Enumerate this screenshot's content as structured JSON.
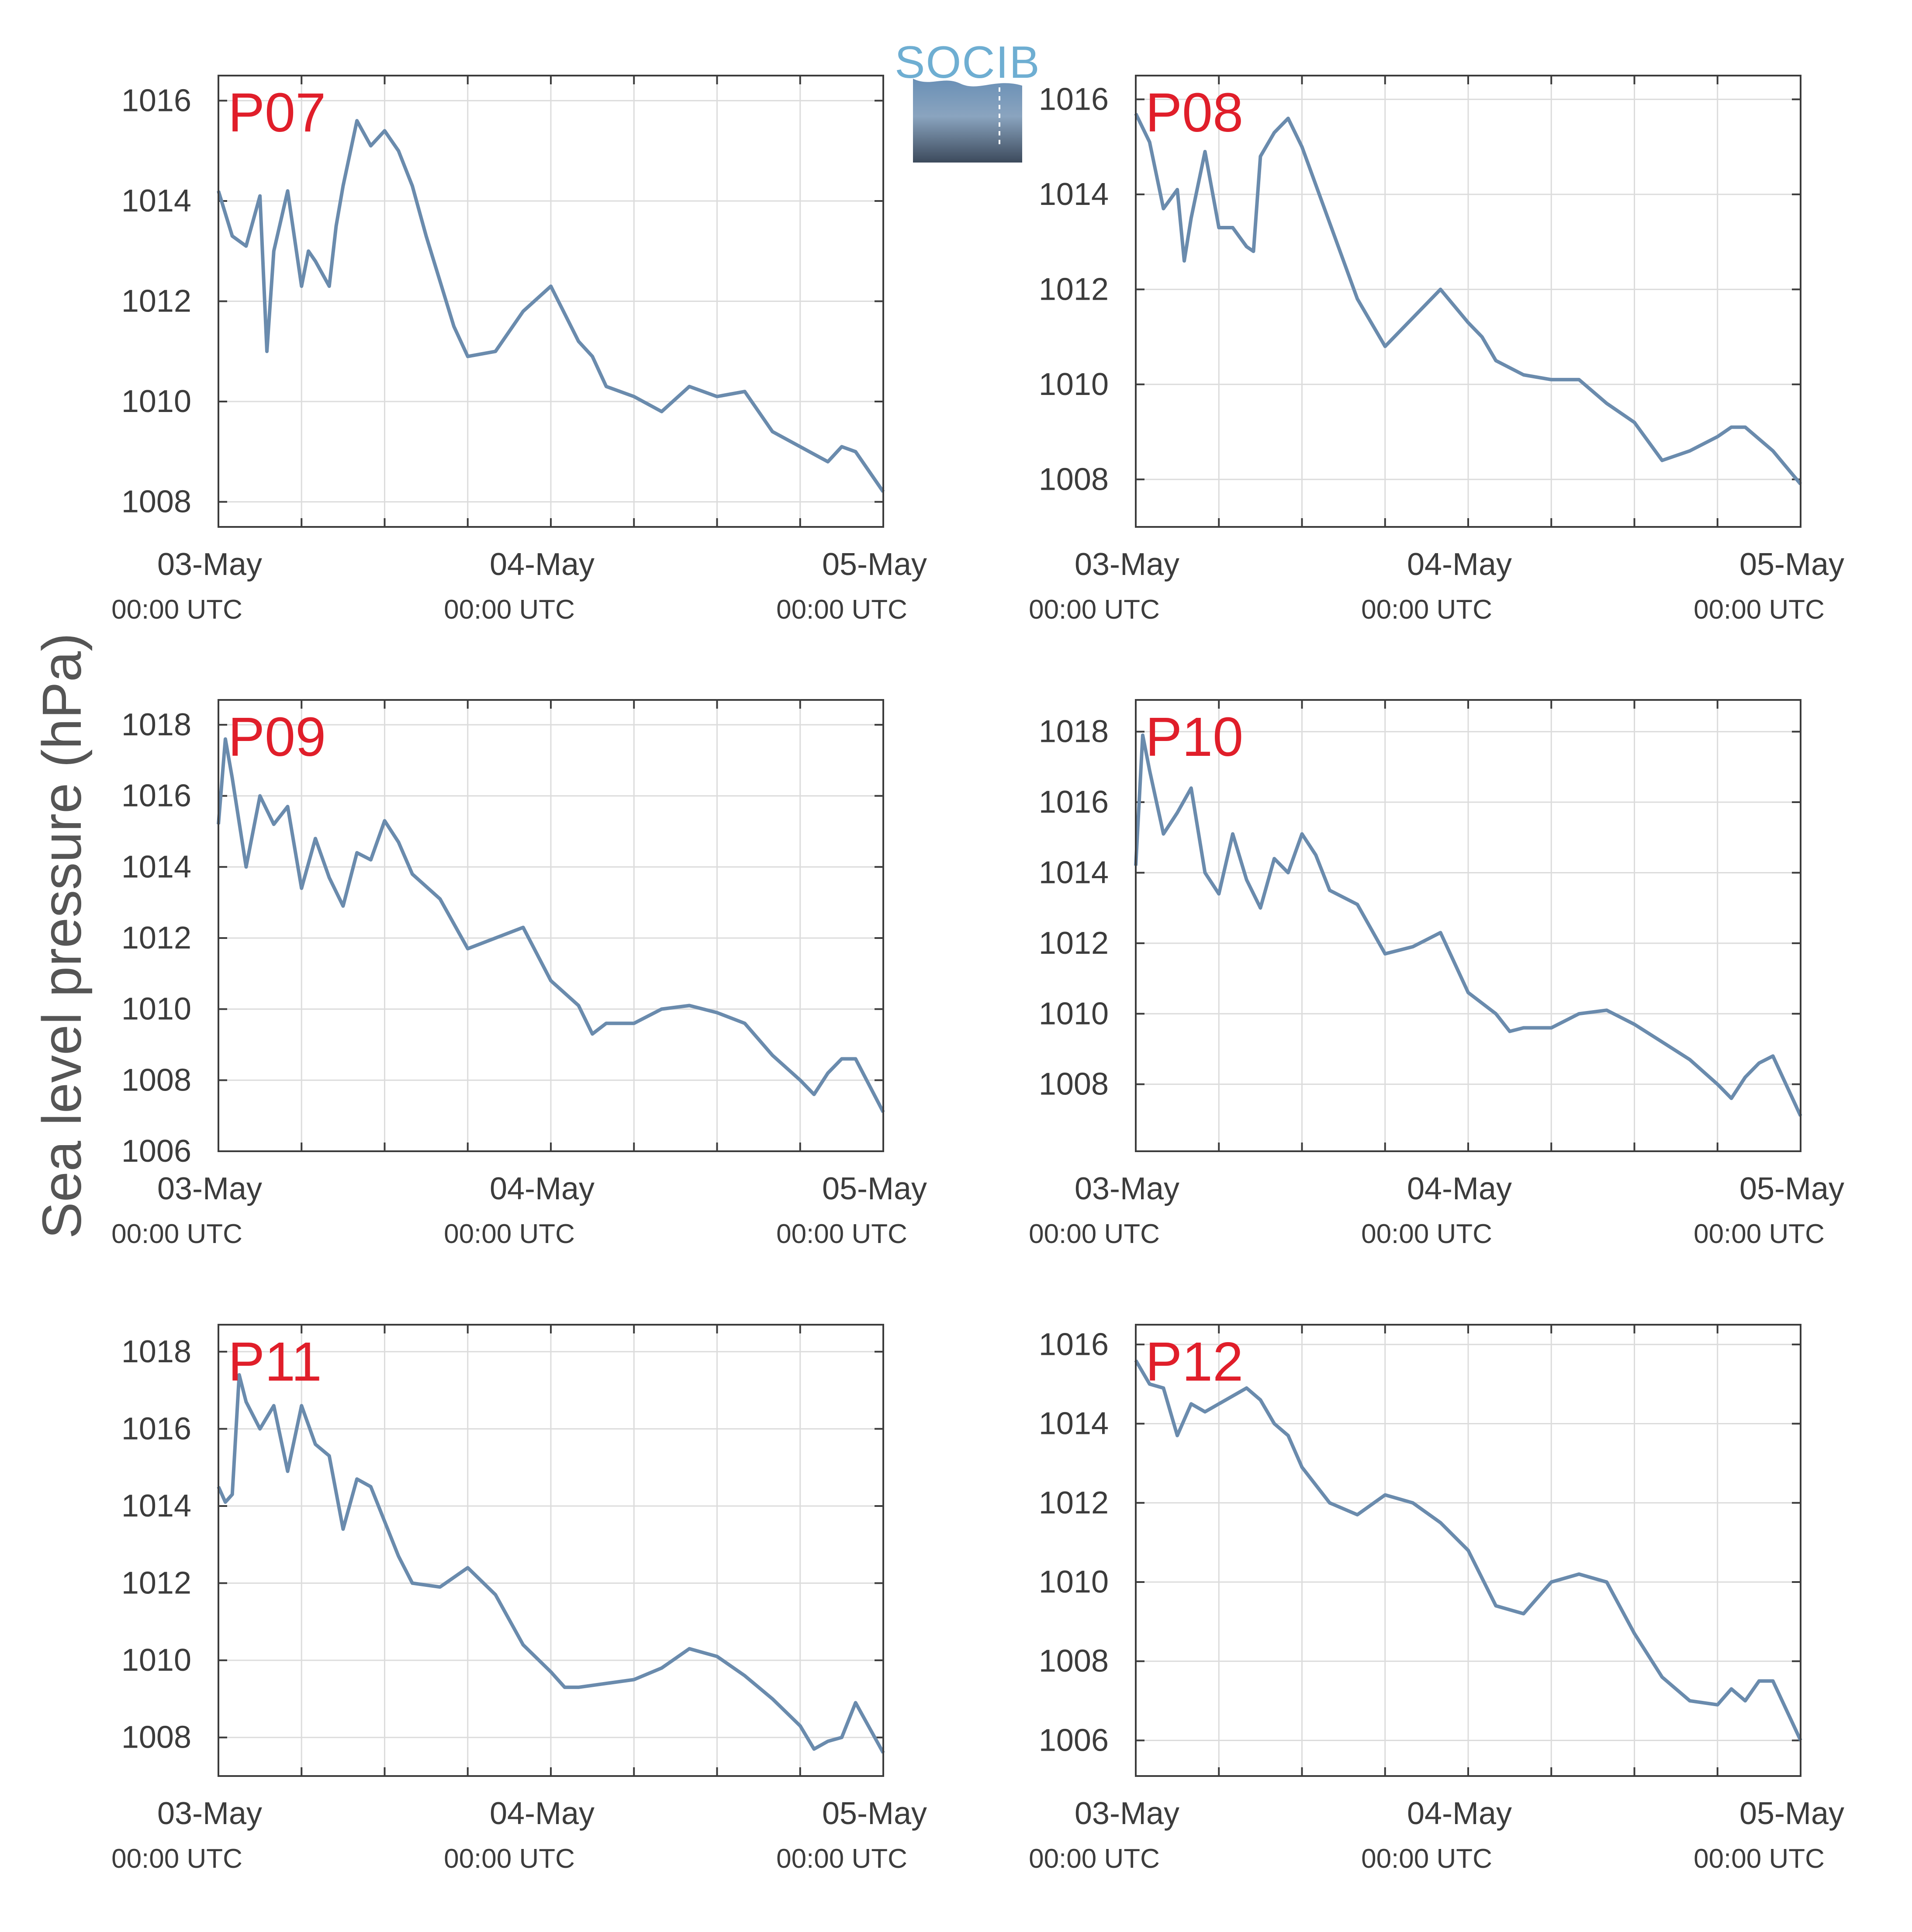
{
  "logo": {
    "text": "SOCIB"
  },
  "ylabel": "Sea level pressure (hPa)",
  "colors": {
    "line": "#6a8bad",
    "grid": "#dcdcdc",
    "axis": "#3c3c3c",
    "panel_label": "#e01e2a"
  },
  "x_tick_labels": [
    {
      "date": "03-May",
      "time": "00:00 UTC"
    },
    {
      "date": "04-May",
      "time": "00:00 UTC"
    },
    {
      "date": "05-May",
      "time": "00:00 UTC"
    }
  ],
  "chart_data": [
    {
      "type": "line",
      "panel_label": "P07",
      "ylim": [
        1007.5,
        1016.5
      ],
      "yticks": [
        1008,
        1010,
        1012,
        1014,
        1016
      ],
      "grid": true,
      "x": [
        "05-03 00:00",
        "05-03 01:00",
        "05-03 02:00",
        "05-03 03:00",
        "05-03 03:30",
        "05-03 04:00",
        "05-03 05:00",
        "05-03 06:00",
        "05-03 06:30",
        "05-03 07:00",
        "05-03 08:00",
        "05-03 08:30",
        "05-03 09:00",
        "05-03 10:00",
        "05-03 11:00",
        "05-03 12:00",
        "05-03 13:00",
        "05-03 14:00",
        "05-03 15:00",
        "05-03 16:00",
        "05-03 17:00",
        "05-03 18:00",
        "05-03 20:00",
        "05-03 22:00",
        "05-04 00:00",
        "05-04 02:00",
        "05-04 03:00",
        "05-04 04:00",
        "05-04 06:00",
        "05-04 08:00",
        "05-04 10:00",
        "05-04 12:00",
        "05-04 14:00",
        "05-04 16:00",
        "05-04 18:00",
        "05-04 20:00",
        "05-04 21:00",
        "05-04 22:00",
        "05-05 00:00"
      ],
      "y": [
        1014.2,
        1013.3,
        1013.1,
        1014.1,
        1011.0,
        1013.0,
        1014.2,
        1012.3,
        1013.0,
        1012.8,
        1012.3,
        1013.5,
        1014.3,
        1015.6,
        1015.1,
        1015.4,
        1015.0,
        1014.3,
        1013.3,
        1012.4,
        1011.5,
        1010.9,
        1011.0,
        1011.8,
        1012.3,
        1011.2,
        1010.9,
        1010.3,
        1010.1,
        1009.8,
        1010.3,
        1010.1,
        1010.2,
        1009.4,
        1009.1,
        1008.8,
        1009.1,
        1009.0,
        1008.2
      ]
    },
    {
      "type": "line",
      "panel_label": "P08",
      "ylim": [
        1007,
        1016.5
      ],
      "yticks": [
        1008,
        1010,
        1012,
        1014,
        1016
      ],
      "grid": true,
      "x": [
        "05-03 00:00",
        "05-03 01:00",
        "05-03 02:00",
        "05-03 03:00",
        "05-03 03:30",
        "05-03 04:00",
        "05-03 05:00",
        "05-03 06:00",
        "05-03 07:00",
        "05-03 08:00",
        "05-03 08:30",
        "05-03 09:00",
        "05-03 10:00",
        "05-03 11:00",
        "05-03 12:00",
        "05-03 13:00",
        "05-03 14:00",
        "05-03 16:00",
        "05-03 18:00",
        "05-03 20:00",
        "05-03 22:00",
        "05-04 00:00",
        "05-04 01:00",
        "05-04 02:00",
        "05-04 04:00",
        "05-04 06:00",
        "05-04 08:00",
        "05-04 10:00",
        "05-04 12:00",
        "05-04 14:00",
        "05-04 16:00",
        "05-04 18:00",
        "05-04 19:00",
        "05-04 20:00",
        "05-04 22:00",
        "05-05 00:00"
      ],
      "y": [
        1015.7,
        1015.1,
        1013.7,
        1014.1,
        1012.6,
        1013.5,
        1014.9,
        1013.3,
        1013.3,
        1012.9,
        1012.8,
        1014.8,
        1015.3,
        1015.6,
        1015.0,
        1014.2,
        1013.4,
        1011.8,
        1010.8,
        1011.4,
        1012.0,
        1011.3,
        1011.0,
        1010.5,
        1010.2,
        1010.1,
        1010.1,
        1009.6,
        1009.2,
        1008.4,
        1008.6,
        1008.9,
        1009.1,
        1009.1,
        1008.6,
        1007.9
      ]
    },
    {
      "type": "line",
      "panel_label": "P09",
      "ylim": [
        1006,
        1018.7
      ],
      "yticks": [
        1006,
        1008,
        1010,
        1012,
        1014,
        1016,
        1018
      ],
      "grid": true,
      "x": [
        "05-03 00:00",
        "05-03 00:30",
        "05-03 01:00",
        "05-03 02:00",
        "05-03 03:00",
        "05-03 04:00",
        "05-03 05:00",
        "05-03 06:00",
        "05-03 07:00",
        "05-03 08:00",
        "05-03 09:00",
        "05-03 10:00",
        "05-03 11:00",
        "05-03 12:00",
        "05-03 13:00",
        "05-03 14:00",
        "05-03 16:00",
        "05-03 18:00",
        "05-03 20:00",
        "05-03 22:00",
        "05-04 00:00",
        "05-04 02:00",
        "05-04 03:00",
        "05-04 04:00",
        "05-04 06:00",
        "05-04 08:00",
        "05-04 10:00",
        "05-04 12:00",
        "05-04 14:00",
        "05-04 16:00",
        "05-04 18:00",
        "05-04 19:00",
        "05-04 20:00",
        "05-04 21:00",
        "05-04 22:00",
        "05-05 00:00"
      ],
      "y": [
        1015.2,
        1017.6,
        1016.5,
        1014.0,
        1016.0,
        1015.2,
        1015.7,
        1013.4,
        1014.8,
        1013.7,
        1012.9,
        1014.4,
        1014.2,
        1015.3,
        1014.7,
        1013.8,
        1013.1,
        1011.7,
        1012.0,
        1012.3,
        1010.8,
        1010.1,
        1009.3,
        1009.6,
        1009.6,
        1010.0,
        1010.1,
        1009.9,
        1009.6,
        1008.7,
        1008.0,
        1007.6,
        1008.2,
        1008.6,
        1008.6,
        1007.1
      ]
    },
    {
      "type": "line",
      "panel_label": "P10",
      "ylim": [
        1006.1,
        1018.9
      ],
      "yticks": [
        1008,
        1010,
        1012,
        1014,
        1016,
        1018
      ],
      "grid": true,
      "x": [
        "05-03 00:00",
        "05-03 00:30",
        "05-03 01:00",
        "05-03 02:00",
        "05-03 03:00",
        "05-03 04:00",
        "05-03 05:00",
        "05-03 06:00",
        "05-03 07:00",
        "05-03 08:00",
        "05-03 09:00",
        "05-03 10:00",
        "05-03 11:00",
        "05-03 12:00",
        "05-03 13:00",
        "05-03 14:00",
        "05-03 16:00",
        "05-03 18:00",
        "05-03 20:00",
        "05-03 22:00",
        "05-04 00:00",
        "05-04 02:00",
        "05-04 03:00",
        "05-04 04:00",
        "05-04 06:00",
        "05-04 08:00",
        "05-04 10:00",
        "05-04 12:00",
        "05-04 14:00",
        "05-04 16:00",
        "05-04 18:00",
        "05-04 19:00",
        "05-04 20:00",
        "05-04 21:00",
        "05-04 22:00",
        "05-05 00:00"
      ],
      "y": [
        1014.2,
        1017.9,
        1016.9,
        1015.1,
        1015.7,
        1016.4,
        1014.0,
        1013.4,
        1015.1,
        1013.8,
        1013.0,
        1014.4,
        1014.0,
        1015.1,
        1014.5,
        1013.5,
        1013.1,
        1011.7,
        1011.9,
        1012.3,
        1010.6,
        1010.0,
        1009.5,
        1009.6,
        1009.6,
        1010.0,
        1010.1,
        1009.7,
        1009.2,
        1008.7,
        1008.0,
        1007.6,
        1008.2,
        1008.6,
        1008.8,
        1007.1
      ]
    },
    {
      "type": "line",
      "panel_label": "P11",
      "ylim": [
        1007,
        1018.7
      ],
      "yticks": [
        1008,
        1010,
        1012,
        1014,
        1016,
        1018
      ],
      "grid": true,
      "x": [
        "05-03 00:00",
        "05-03 00:30",
        "05-03 01:00",
        "05-03 01:30",
        "05-03 02:00",
        "05-03 03:00",
        "05-03 04:00",
        "05-03 05:00",
        "05-03 06:00",
        "05-03 07:00",
        "05-03 08:00",
        "05-03 09:00",
        "05-03 10:00",
        "05-03 11:00",
        "05-03 12:00",
        "05-03 13:00",
        "05-03 14:00",
        "05-03 16:00",
        "05-03 18:00",
        "05-03 20:00",
        "05-03 22:00",
        "05-04 00:00",
        "05-04 01:00",
        "05-04 02:00",
        "05-04 04:00",
        "05-04 06:00",
        "05-04 08:00",
        "05-04 10:00",
        "05-04 12:00",
        "05-04 14:00",
        "05-04 16:00",
        "05-04 18:00",
        "05-04 19:00",
        "05-04 20:00",
        "05-04 21:00",
        "05-04 22:00",
        "05-05 00:00"
      ],
      "y": [
        1014.5,
        1014.1,
        1014.3,
        1017.4,
        1016.7,
        1016.0,
        1016.6,
        1014.9,
        1016.6,
        1015.6,
        1015.3,
        1013.4,
        1014.7,
        1014.5,
        1013.6,
        1012.7,
        1012.0,
        1011.9,
        1012.4,
        1011.7,
        1010.4,
        1009.7,
        1009.3,
        1009.3,
        1009.4,
        1009.5,
        1009.8,
        1010.3,
        1010.1,
        1009.6,
        1009.0,
        1008.3,
        1007.7,
        1007.9,
        1008.0,
        1008.9,
        1007.6
      ]
    },
    {
      "type": "line",
      "panel_label": "P12",
      "ylim": [
        1005.1,
        1016.5
      ],
      "yticks": [
        1006,
        1008,
        1010,
        1012,
        1014,
        1016
      ],
      "grid": true,
      "x": [
        "05-03 00:00",
        "05-03 01:00",
        "05-03 02:00",
        "05-03 03:00",
        "05-03 04:00",
        "05-03 05:00",
        "05-03 06:00",
        "05-03 07:00",
        "05-03 08:00",
        "05-03 09:00",
        "05-03 10:00",
        "05-03 11:00",
        "05-03 12:00",
        "05-03 14:00",
        "05-03 16:00",
        "05-03 18:00",
        "05-03 20:00",
        "05-03 22:00",
        "05-04 00:00",
        "05-04 02:00",
        "05-04 04:00",
        "05-04 06:00",
        "05-04 08:00",
        "05-04 10:00",
        "05-04 12:00",
        "05-04 14:00",
        "05-04 16:00",
        "05-04 18:00",
        "05-04 19:00",
        "05-04 20:00",
        "05-04 21:00",
        "05-04 22:00",
        "05-05 00:00"
      ],
      "y": [
        1015.6,
        1015.0,
        1014.9,
        1013.7,
        1014.5,
        1014.3,
        1014.5,
        1014.7,
        1014.9,
        1014.6,
        1014.0,
        1013.7,
        1012.9,
        1012.0,
        1011.7,
        1012.2,
        1012.0,
        1011.5,
        1010.8,
        1009.4,
        1009.2,
        1010.0,
        1010.2,
        1010.0,
        1008.7,
        1007.6,
        1007.0,
        1006.9,
        1007.3,
        1007.0,
        1007.5,
        1007.5,
        1006.0
      ]
    }
  ]
}
